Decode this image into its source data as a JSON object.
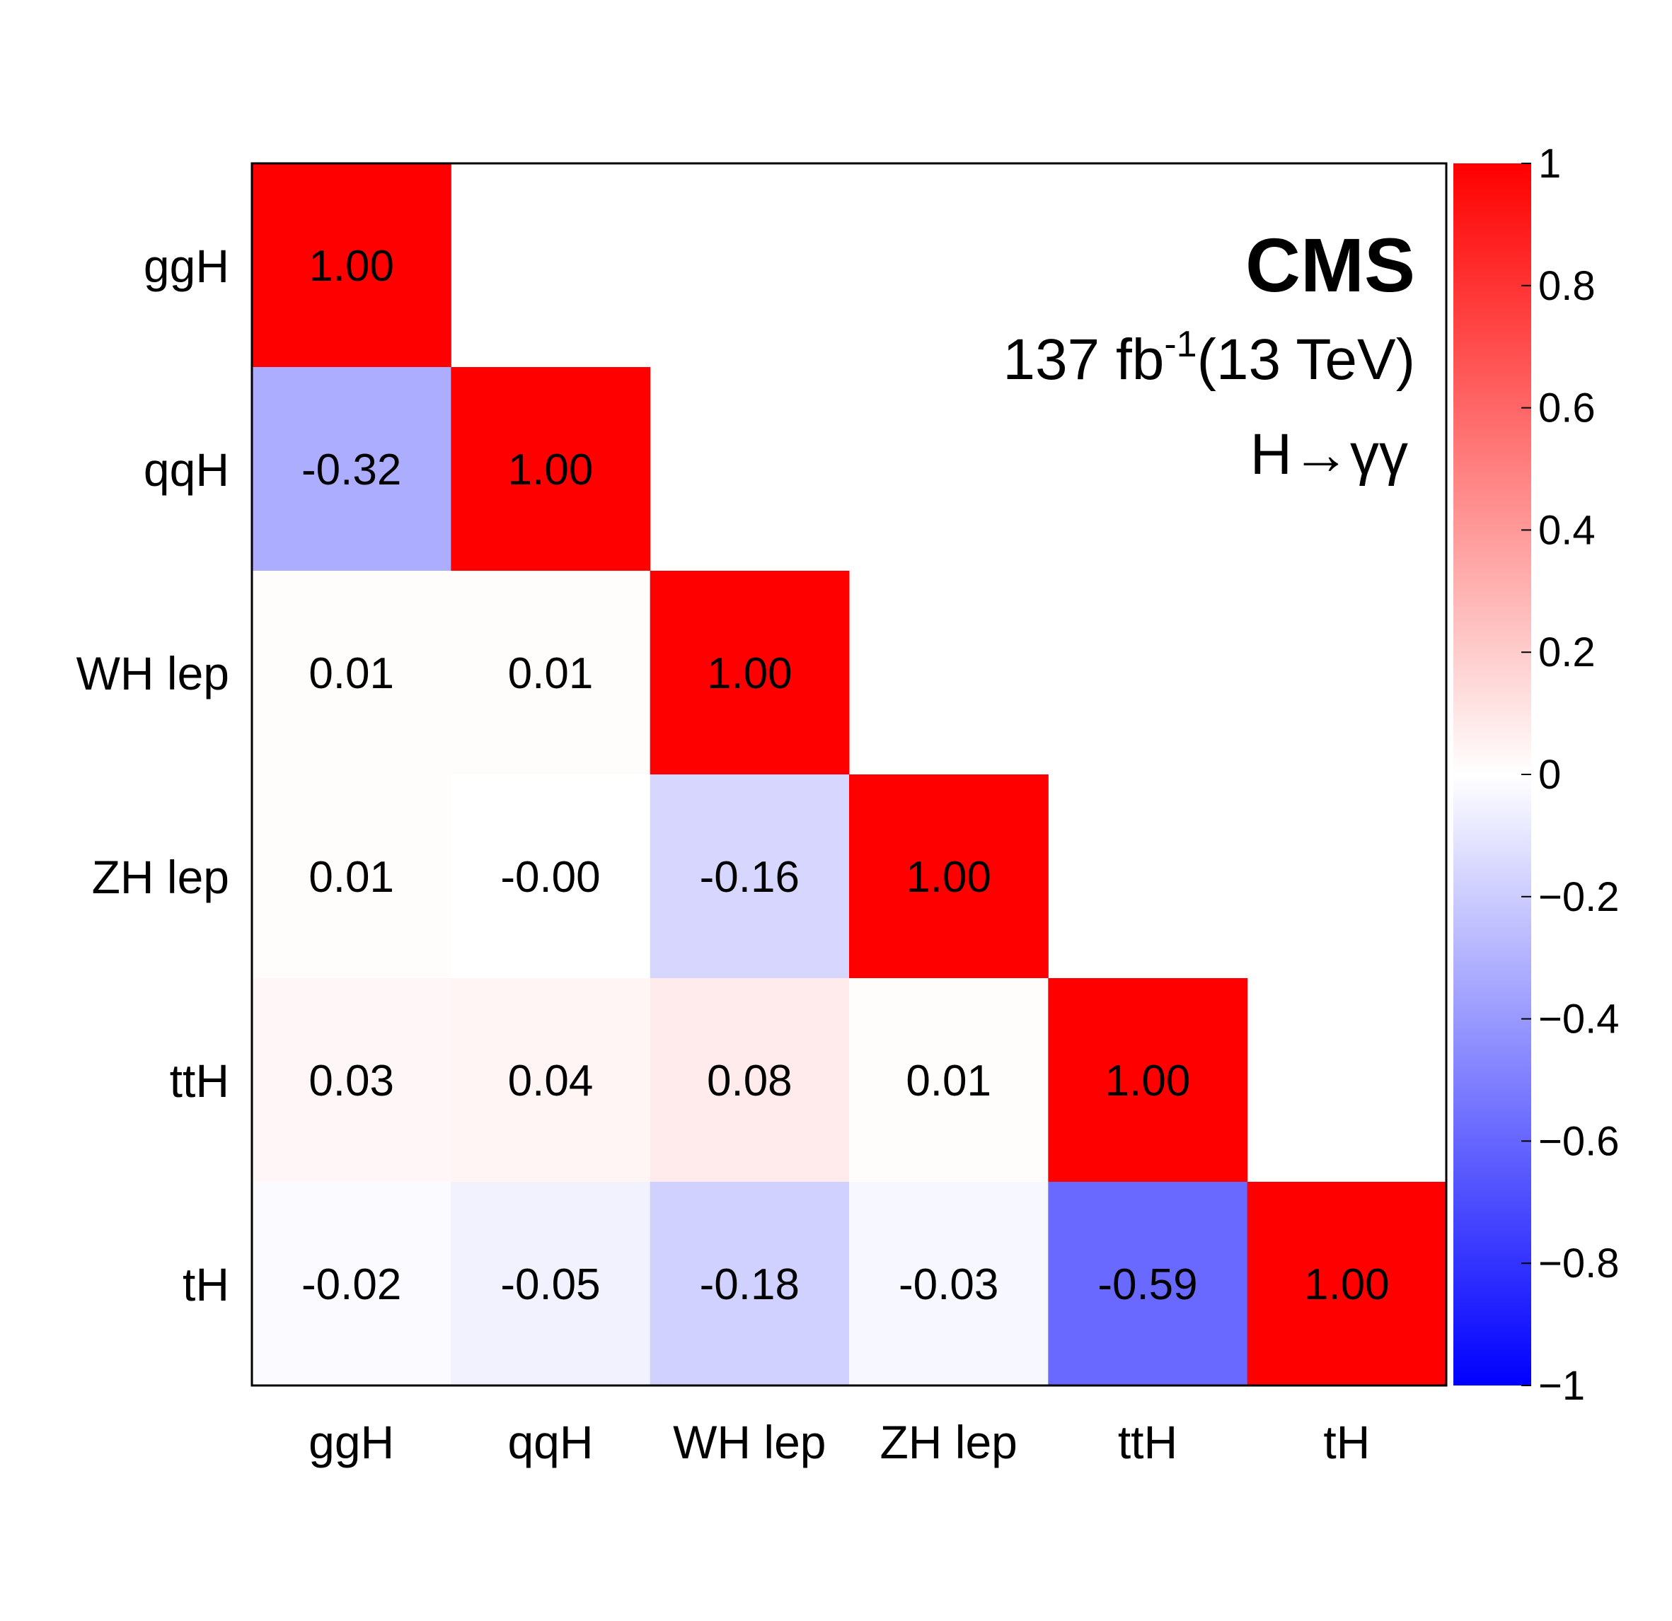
{
  "chart_data": {
    "type": "heatmap",
    "title": "",
    "categories": [
      "ggH",
      "qqH",
      "WH lep",
      "ZH lep",
      "ttH",
      "tH"
    ],
    "matrix_lower_triangular": [
      [
        "1.00"
      ],
      [
        "-0.32",
        "1.00"
      ],
      [
        "0.01",
        "0.01",
        "1.00"
      ],
      [
        "0.01",
        "-0.00",
        "-0.16",
        "1.00"
      ],
      [
        "0.03",
        "0.04",
        "0.08",
        "0.01",
        "1.00"
      ],
      [
        "-0.02",
        "-0.05",
        "-0.18",
        "-0.03",
        "-0.59",
        "1.00"
      ]
    ],
    "zlim": [
      -1,
      1
    ],
    "colorbar_ticks": [
      "1",
      "0.8",
      "0.6",
      "0.4",
      "0.2",
      "0",
      "−0.2",
      "−0.4",
      "−0.6",
      "−0.8",
      "−1"
    ],
    "colorbar_tick_values": [
      1,
      0.8,
      0.6,
      0.4,
      0.2,
      0,
      -0.2,
      -0.4,
      -0.6,
      -0.8,
      -1
    ],
    "colormap": {
      "negative": "#0000ff",
      "zero": "#ffffff",
      "positive": "#ff0000"
    },
    "grid": false
  },
  "annotations": {
    "experiment": "CMS",
    "lumi_value": "137 fb",
    "lumi_exponent": "-1",
    "lumi_energy": "(13 TeV)",
    "channel": "H→γγ"
  }
}
